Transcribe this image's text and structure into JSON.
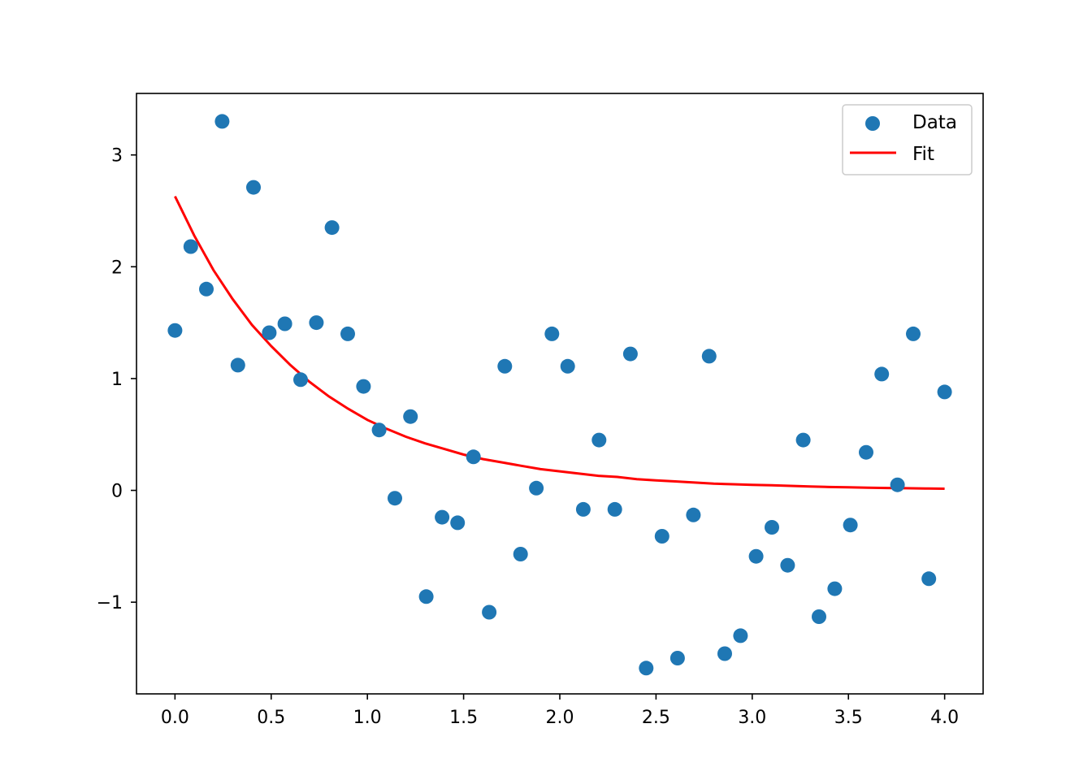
{
  "chart_data": {
    "type": "scatter",
    "title": "",
    "xlabel": "",
    "ylabel": "",
    "xlim": [
      -0.2,
      4.2
    ],
    "ylim": [
      -1.82,
      3.55
    ],
    "grid": false,
    "legend_position": "top-right",
    "x_ticks": [
      0.0,
      0.5,
      1.0,
      1.5,
      2.0,
      2.5,
      3.0,
      3.5,
      4.0
    ],
    "x_tick_labels": [
      "0.0",
      "0.5",
      "1.0",
      "1.5",
      "2.0",
      "2.5",
      "3.0",
      "3.5",
      "4.0"
    ],
    "y_ticks": [
      -1,
      0,
      1,
      2,
      3
    ],
    "y_tick_labels": [
      "−1",
      "0",
      "1",
      "2",
      "3"
    ],
    "series": [
      {
        "name": "Data",
        "kind": "scatter",
        "color": "#1f77b4",
        "x": [
          0.0,
          0.082,
          0.163,
          0.245,
          0.327,
          0.408,
          0.49,
          0.571,
          0.653,
          0.735,
          0.816,
          0.898,
          0.98,
          1.061,
          1.143,
          1.224,
          1.306,
          1.388,
          1.469,
          1.551,
          1.633,
          1.714,
          1.796,
          1.878,
          1.959,
          2.041,
          2.122,
          2.204,
          2.286,
          2.367,
          2.449,
          2.531,
          2.612,
          2.694,
          2.776,
          2.857,
          2.939,
          3.02,
          3.102,
          3.184,
          3.265,
          3.347,
          3.429,
          3.51,
          3.592,
          3.673,
          3.755,
          3.837,
          3.918,
          4.0
        ],
        "y": [
          1.43,
          2.18,
          1.8,
          3.3,
          1.12,
          2.71,
          1.41,
          1.49,
          0.99,
          1.5,
          2.35,
          1.4,
          0.93,
          0.54,
          -0.07,
          0.66,
          -0.95,
          -0.24,
          -0.29,
          0.3,
          -1.09,
          1.11,
          -0.57,
          0.02,
          1.4,
          1.11,
          -0.17,
          0.45,
          -0.17,
          1.22,
          -1.59,
          -0.41,
          -1.5,
          -0.22,
          1.2,
          -1.46,
          -1.3,
          -0.59,
          -0.33,
          -0.67,
          0.45,
          -1.13,
          -0.88,
          -0.31,
          0.34,
          1.04,
          0.05,
          1.4,
          -0.79,
          0.88
        ]
      },
      {
        "name": "Fit",
        "kind": "line",
        "color": "#ff0000",
        "x": [
          0.0,
          0.1,
          0.2,
          0.3,
          0.4,
          0.5,
          0.6,
          0.7,
          0.8,
          0.9,
          1.0,
          1.1,
          1.2,
          1.3,
          1.4,
          1.5,
          1.6,
          1.7,
          1.8,
          1.9,
          2.0,
          2.1,
          2.2,
          2.3,
          2.4,
          2.5,
          2.6,
          2.7,
          2.8,
          2.9,
          3.0,
          3.1,
          3.2,
          3.3,
          3.4,
          3.5,
          3.6,
          3.7,
          3.8,
          3.9,
          4.0
        ],
        "y": [
          2.63,
          2.28,
          1.97,
          1.71,
          1.48,
          1.29,
          1.12,
          0.97,
          0.84,
          0.73,
          0.63,
          0.55,
          0.48,
          0.42,
          0.37,
          0.32,
          0.28,
          0.25,
          0.22,
          0.19,
          0.17,
          0.15,
          0.13,
          0.12,
          0.1,
          0.09,
          0.08,
          0.07,
          0.06,
          0.055,
          0.05,
          0.045,
          0.04,
          0.035,
          0.03,
          0.027,
          0.024,
          0.021,
          0.019,
          0.017,
          0.015
        ]
      }
    ]
  }
}
